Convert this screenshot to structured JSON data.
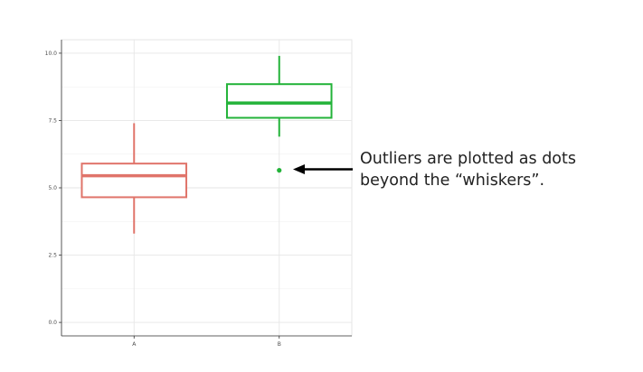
{
  "chart_data": {
    "type": "boxplot",
    "categories": [
      "A",
      "B"
    ],
    "boxes": [
      {
        "category": "A",
        "whisker_low": 3.3,
        "q1": 4.65,
        "median": 5.45,
        "q3": 5.9,
        "whisker_high": 7.4,
        "outliers": [],
        "color": "#e0746a"
      },
      {
        "category": "B",
        "whisker_low": 6.9,
        "q1": 7.6,
        "median": 8.15,
        "q3": 8.85,
        "whisker_high": 9.9,
        "outliers": [
          5.65
        ],
        "color": "#23b339"
      }
    ],
    "y_ticks": [
      "0.0",
      "2.5",
      "5.0",
      "7.5",
      "10.0"
    ],
    "y_tick_values": [
      0,
      2.5,
      5,
      7.5,
      10
    ],
    "ylim": [
      -0.5,
      10.5
    ],
    "grid": true,
    "title": "",
    "xlabel": "",
    "ylabel": ""
  },
  "annotation": {
    "line1": "Outliers are plotted as dots",
    "line2": "beyond the “whiskers”.",
    "arrow_color": "#000000"
  }
}
